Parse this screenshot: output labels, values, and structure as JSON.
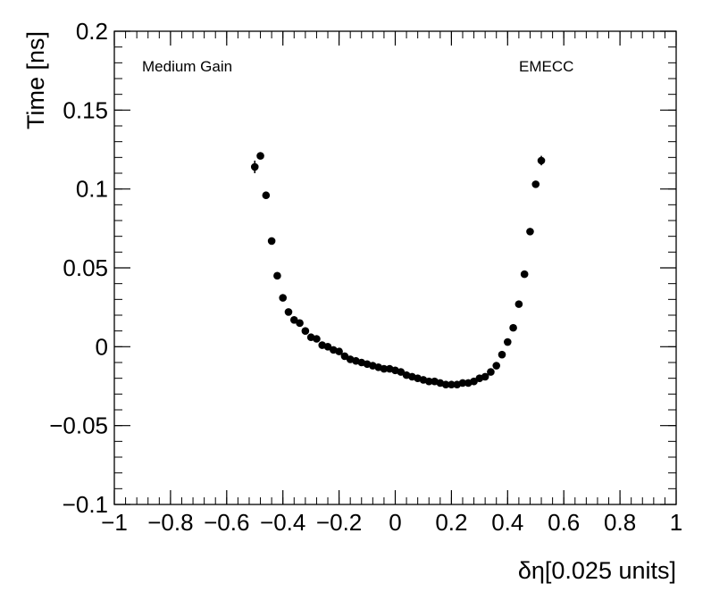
{
  "chart_data": {
    "type": "scatter",
    "xlabel": "δη[0.025 units]",
    "ylabel": "Time [ns]",
    "xlim": [
      -1,
      1
    ],
    "ylim": [
      -0.1,
      0.2
    ],
    "x_ticks": [
      {
        "value": -1,
        "label": "−1"
      },
      {
        "value": -0.8,
        "label": "−0.8"
      },
      {
        "value": -0.6,
        "label": "−0.6"
      },
      {
        "value": -0.4,
        "label": "−0.4"
      },
      {
        "value": -0.2,
        "label": "−0.2"
      },
      {
        "value": 0,
        "label": "0"
      },
      {
        "value": 0.2,
        "label": "0.2"
      },
      {
        "value": 0.4,
        "label": "0.4"
      },
      {
        "value": 0.6,
        "label": "0.6"
      },
      {
        "value": 0.8,
        "label": "0.8"
      },
      {
        "value": 1,
        "label": "1"
      }
    ],
    "y_ticks": [
      {
        "value": -0.1,
        "label": "−0.1"
      },
      {
        "value": -0.05,
        "label": "−0.05"
      },
      {
        "value": 0,
        "label": "0"
      },
      {
        "value": 0.05,
        "label": "0.05"
      },
      {
        "value": 0.1,
        "label": "0.1"
      },
      {
        "value": 0.15,
        "label": "0.15"
      },
      {
        "value": 0.2,
        "label": "0.2"
      }
    ],
    "annotations": [
      {
        "text": "Medium Gain",
        "position": "top-left"
      },
      {
        "text": "EMECC",
        "position": "top-right"
      }
    ],
    "grid": false,
    "marker_color": "#000000",
    "points": [
      {
        "x": -0.5,
        "y": 0.114,
        "err": 0.004
      },
      {
        "x": -0.48,
        "y": 0.121,
        "err": 0.002
      },
      {
        "x": -0.46,
        "y": 0.096,
        "err": 0.001
      },
      {
        "x": -0.44,
        "y": 0.067,
        "err": 0.001
      },
      {
        "x": -0.42,
        "y": 0.045,
        "err": 0.001
      },
      {
        "x": -0.4,
        "y": 0.031,
        "err": 0.001
      },
      {
        "x": -0.38,
        "y": 0.022,
        "err": 0.001
      },
      {
        "x": -0.36,
        "y": 0.017,
        "err": 0.001
      },
      {
        "x": -0.34,
        "y": 0.015,
        "err": 0.001
      },
      {
        "x": -0.32,
        "y": 0.01,
        "err": 0.001
      },
      {
        "x": -0.3,
        "y": 0.006,
        "err": 0.001
      },
      {
        "x": -0.28,
        "y": 0.005,
        "err": 0.001
      },
      {
        "x": -0.26,
        "y": 0.001,
        "err": 0.001
      },
      {
        "x": -0.24,
        "y": 0.0,
        "err": 0.001
      },
      {
        "x": -0.22,
        "y": -0.002,
        "err": 0.001
      },
      {
        "x": -0.2,
        "y": -0.003,
        "err": 0.001
      },
      {
        "x": -0.18,
        "y": -0.006,
        "err": 0.001
      },
      {
        "x": -0.16,
        "y": -0.008,
        "err": 0.001
      },
      {
        "x": -0.14,
        "y": -0.009,
        "err": 0.001
      },
      {
        "x": -0.12,
        "y": -0.01,
        "err": 0.001
      },
      {
        "x": -0.1,
        "y": -0.011,
        "err": 0.001
      },
      {
        "x": -0.08,
        "y": -0.012,
        "err": 0.001
      },
      {
        "x": -0.06,
        "y": -0.013,
        "err": 0.001
      },
      {
        "x": -0.04,
        "y": -0.014,
        "err": 0.001
      },
      {
        "x": -0.02,
        "y": -0.014,
        "err": 0.001
      },
      {
        "x": 0.0,
        "y": -0.015,
        "err": 0.001
      },
      {
        "x": 0.02,
        "y": -0.016,
        "err": 0.001
      },
      {
        "x": 0.04,
        "y": -0.018,
        "err": 0.001
      },
      {
        "x": 0.06,
        "y": -0.019,
        "err": 0.001
      },
      {
        "x": 0.08,
        "y": -0.02,
        "err": 0.001
      },
      {
        "x": 0.1,
        "y": -0.021,
        "err": 0.001
      },
      {
        "x": 0.12,
        "y": -0.022,
        "err": 0.001
      },
      {
        "x": 0.14,
        "y": -0.022,
        "err": 0.001
      },
      {
        "x": 0.16,
        "y": -0.023,
        "err": 0.001
      },
      {
        "x": 0.18,
        "y": -0.024,
        "err": 0.001
      },
      {
        "x": 0.2,
        "y": -0.024,
        "err": 0.001
      },
      {
        "x": 0.22,
        "y": -0.024,
        "err": 0.001
      },
      {
        "x": 0.24,
        "y": -0.023,
        "err": 0.001
      },
      {
        "x": 0.26,
        "y": -0.023,
        "err": 0.001
      },
      {
        "x": 0.28,
        "y": -0.022,
        "err": 0.001
      },
      {
        "x": 0.3,
        "y": -0.02,
        "err": 0.001
      },
      {
        "x": 0.32,
        "y": -0.019,
        "err": 0.001
      },
      {
        "x": 0.34,
        "y": -0.016,
        "err": 0.001
      },
      {
        "x": 0.36,
        "y": -0.012,
        "err": 0.001
      },
      {
        "x": 0.38,
        "y": -0.005,
        "err": 0.001
      },
      {
        "x": 0.4,
        "y": 0.003,
        "err": 0.001
      },
      {
        "x": 0.42,
        "y": 0.012,
        "err": 0.001
      },
      {
        "x": 0.44,
        "y": 0.027,
        "err": 0.001
      },
      {
        "x": 0.46,
        "y": 0.046,
        "err": 0.001
      },
      {
        "x": 0.48,
        "y": 0.073,
        "err": 0.001
      },
      {
        "x": 0.5,
        "y": 0.103,
        "err": 0.001
      },
      {
        "x": 0.52,
        "y": 0.118,
        "err": 0.003
      }
    ]
  }
}
